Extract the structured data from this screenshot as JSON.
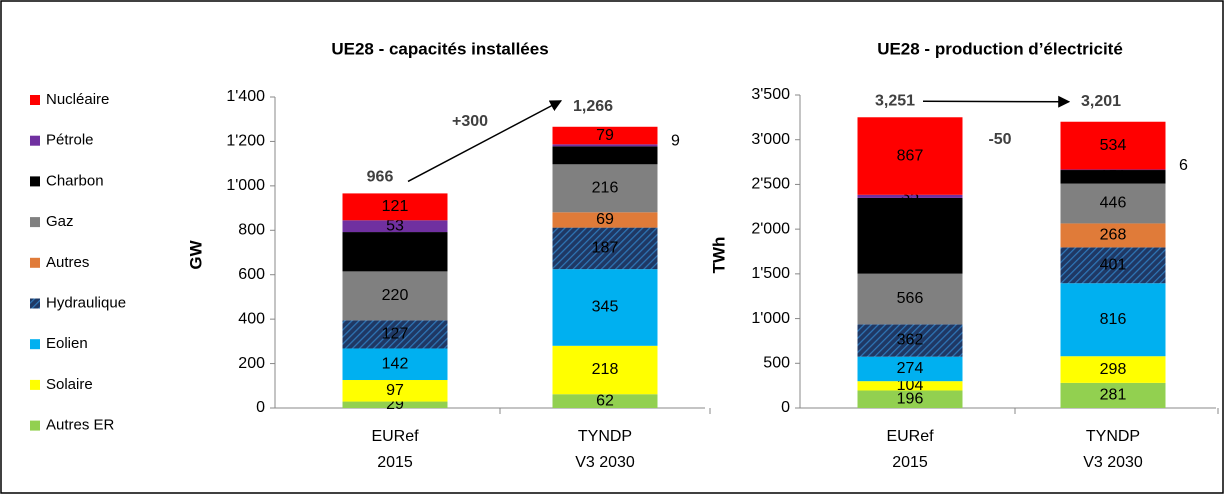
{
  "chart_data": [
    {
      "type": "stacked_bar",
      "title": "UE28 - capacités installées",
      "y_label": "GW",
      "categories": [
        "EURef\n2015",
        "TYNDP\nV3 2030"
      ],
      "ylim": [
        0,
        1400
      ],
      "yticks": [
        0,
        200,
        400,
        600,
        800,
        {
          "value": 1000,
          "label": "1'000"
        },
        {
          "value": 1200,
          "label": "1'200"
        },
        {
          "value": 1400,
          "label": "1'400"
        }
      ],
      "series": [
        {
          "name": "Autres ER",
          "color": "#92d050",
          "label_color": "#000000",
          "values": [
            29,
            62
          ]
        },
        {
          "name": "Solaire",
          "color": "#ffff00",
          "label_color": "#000000",
          "values": [
            97,
            218
          ]
        },
        {
          "name": "Eolien",
          "color": "#00b0f0",
          "label_color": "#ffffff",
          "values": [
            142,
            345
          ]
        },
        {
          "name": "Hydraulique",
          "color": "#1f3864",
          "pattern": "hatch",
          "label_color": "#ffffff",
          "values": [
            127,
            187
          ]
        },
        {
          "name": "Autres",
          "color": "#e07b39",
          "label_color": "#ffffff",
          "values": [
            null,
            69
          ]
        },
        {
          "name": "Gaz",
          "color": "#808080",
          "label_color": "#ffffff",
          "values": [
            220,
            216
          ]
        },
        {
          "name": "Charbon",
          "color": "#000000",
          "label_color": "#ffffff",
          "values": [
            177,
            81
          ]
        },
        {
          "name": "Pétrole",
          "color": "#7030a0",
          "label_color": "#ffffff",
          "label_outside": [
            false,
            true
          ],
          "values": [
            53,
            9
          ]
        },
        {
          "name": "Nucléaire",
          "color": "#ff0000",
          "label_color": "#ffffff",
          "values": [
            121,
            79
          ]
        }
      ],
      "totals": [
        966,
        1266
      ],
      "total_labels": [
        "966",
        "1,266"
      ],
      "change_label": "+300"
    },
    {
      "type": "stacked_bar",
      "title": "UE28 - production d’électricité",
      "y_label": "TWh",
      "categories": [
        "EURef\n2015",
        "TYNDP\nV3 2030"
      ],
      "ylim": [
        0,
        3500
      ],
      "yticks": [
        0,
        500,
        {
          "value": 1000,
          "label": "1'000"
        },
        {
          "value": 1500,
          "label": "1'500"
        },
        {
          "value": 2000,
          "label": "2'000"
        },
        {
          "value": 2500,
          "label": "2'500"
        },
        {
          "value": 3000,
          "label": "3'000"
        },
        {
          "value": 3500,
          "label": "3'500"
        }
      ],
      "series": [
        {
          "name": "Autres ER",
          "color": "#92d050",
          "label_color": "#000000",
          "values": [
            196,
            281
          ]
        },
        {
          "name": "Solaire",
          "color": "#ffff00",
          "label_color": "#000000",
          "values": [
            104,
            298
          ]
        },
        {
          "name": "Eolien",
          "color": "#00b0f0",
          "label_color": "#ffffff",
          "values": [
            274,
            816
          ]
        },
        {
          "name": "Hydraulique",
          "color": "#1f3864",
          "pattern": "hatch",
          "label_color": "#ffffff",
          "values": [
            362,
            401
          ]
        },
        {
          "name": "Autres",
          "color": "#e07b39",
          "label_color": "#ffffff",
          "values": [
            null,
            268
          ]
        },
        {
          "name": "Gaz",
          "color": "#808080",
          "label_color": "#ffffff",
          "values": [
            566,
            446
          ]
        },
        {
          "name": "Charbon",
          "color": "#000000",
          "label_color": "#ffffff",
          "values": [
            847,
            151
          ]
        },
        {
          "name": "Pétrole",
          "color": "#7030a0",
          "label_color": "#ffffff",
          "label_outside": [
            false,
            true
          ],
          "values": [
            35,
            6
          ]
        },
        {
          "name": "Nucléaire",
          "color": "#ff0000",
          "label_color": "#ffffff",
          "values": [
            867,
            534
          ]
        }
      ],
      "totals": [
        3251,
        3201
      ],
      "total_labels": [
        "3,251",
        "3,201"
      ],
      "change_label": "-50"
    }
  ]
}
